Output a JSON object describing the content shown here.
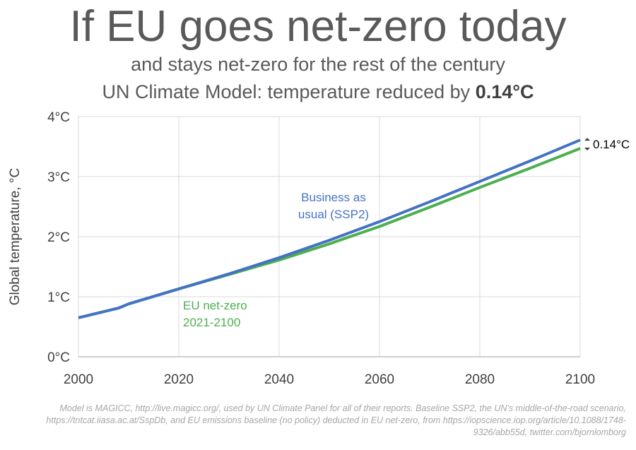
{
  "title": "If EU goes net-zero today",
  "subtitle1": "and stays net-zero for the rest of the century",
  "subtitle2_prefix": "UN Climate Model: temperature reduced by ",
  "subtitle2_value": "0.14°C",
  "footnote": "Model is MAGICC, http://live.magicc.org/, used by UN Climate Panel for all of their reports. Baseline SSP2, the UN’s middle-of-the-road scenario, https://tntcat.iiasa.ac.at/SspDb, and EU emissions baseline (no policy) deducted in EU net-zero, from https://iopscience.iop.org/article/10.1088/1748-9326/abb55d, twitter.com/bjornlomborg",
  "chart_data": {
    "type": "line",
    "ylabel": "Global temperature, °C",
    "xlabel": "",
    "xlim": [
      2000,
      2100
    ],
    "ylim": [
      0,
      4
    ],
    "grid": true,
    "x_ticks": [
      "2000",
      "2020",
      "2040",
      "2060",
      "2080",
      "2100"
    ],
    "y_ticks": [
      "0°C",
      "1°C",
      "2°C",
      "3°C",
      "4°C"
    ],
    "series": [
      {
        "name": "Business as usual (SSP2)",
        "label_lines": [
          "Business as",
          "usual (SSP2)"
        ],
        "color": "#4472C4",
        "x": [
          2000,
          2004,
          2008,
          2010,
          2020,
          2030,
          2040,
          2050,
          2060,
          2070,
          2080,
          2090,
          2100
        ],
        "values": [
          0.65,
          0.73,
          0.81,
          0.88,
          1.13,
          1.38,
          1.65,
          1.94,
          2.25,
          2.58,
          2.92,
          3.26,
          3.61
        ]
      },
      {
        "name": "EU net-zero 2021-2100",
        "label_lines": [
          "EU net-zero",
          "2021-2100"
        ],
        "color": "#4CAF50",
        "x": [
          2000,
          2004,
          2008,
          2010,
          2020,
          2030,
          2040,
          2050,
          2060,
          2070,
          2080,
          2090,
          2100
        ],
        "values": [
          0.65,
          0.73,
          0.81,
          0.88,
          1.13,
          1.37,
          1.61,
          1.88,
          2.17,
          2.49,
          2.82,
          3.14,
          3.47
        ]
      }
    ],
    "annotation": "0.14°C"
  }
}
